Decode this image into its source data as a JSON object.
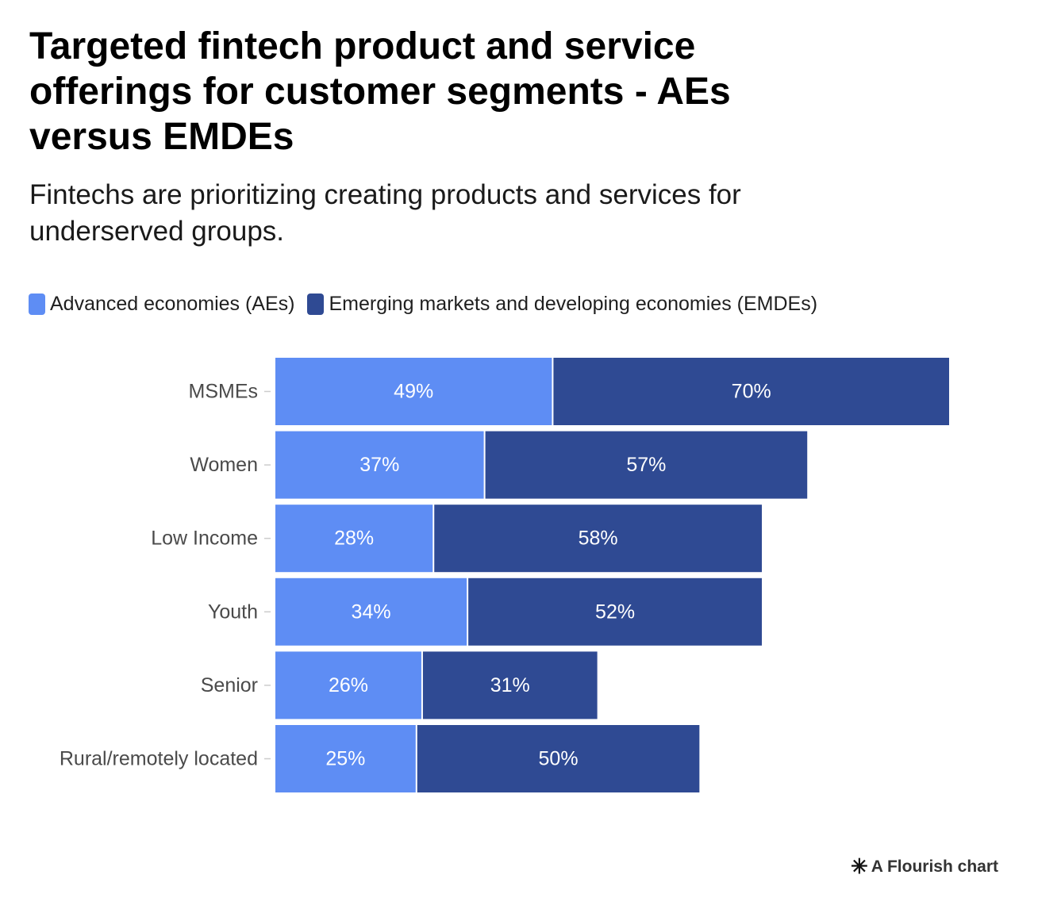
{
  "title": "Targeted fintech product and service offerings for customer segments - AEs versus EMDEs",
  "subtitle": "Fintechs are prioritizing creating products and services for underserved groups.",
  "footer": {
    "label": "A Flourish chart",
    "icon": "flourish-asterisk-icon"
  },
  "colors": {
    "aes": "#5e8df4",
    "emdes": "#2f4a93",
    "label_text": "#ffffff",
    "category_text": "#4a4a4a"
  },
  "chart_data": {
    "type": "bar",
    "orientation": "horizontal",
    "stacked": true,
    "categories": [
      "MSMEs",
      "Women",
      "Low Income",
      "Youth",
      "Senior",
      "Rural/remotely located"
    ],
    "series": [
      {
        "name": "Advanced economies (AEs)",
        "values": [
          49,
          37,
          28,
          34,
          26,
          25
        ],
        "labels": [
          "49%",
          "37%",
          "28%",
          "34%",
          "26%",
          "25%"
        ]
      },
      {
        "name": "Emerging markets and developing economies (EMDEs)",
        "values": [
          70,
          57,
          58,
          52,
          31,
          50
        ],
        "labels": [
          "70%",
          "57%",
          "58%",
          "52%",
          "31%",
          "50%"
        ]
      }
    ],
    "unit": "%",
    "xlim": [
      0,
      119
    ],
    "legend": "top-left",
    "grid": false
  }
}
